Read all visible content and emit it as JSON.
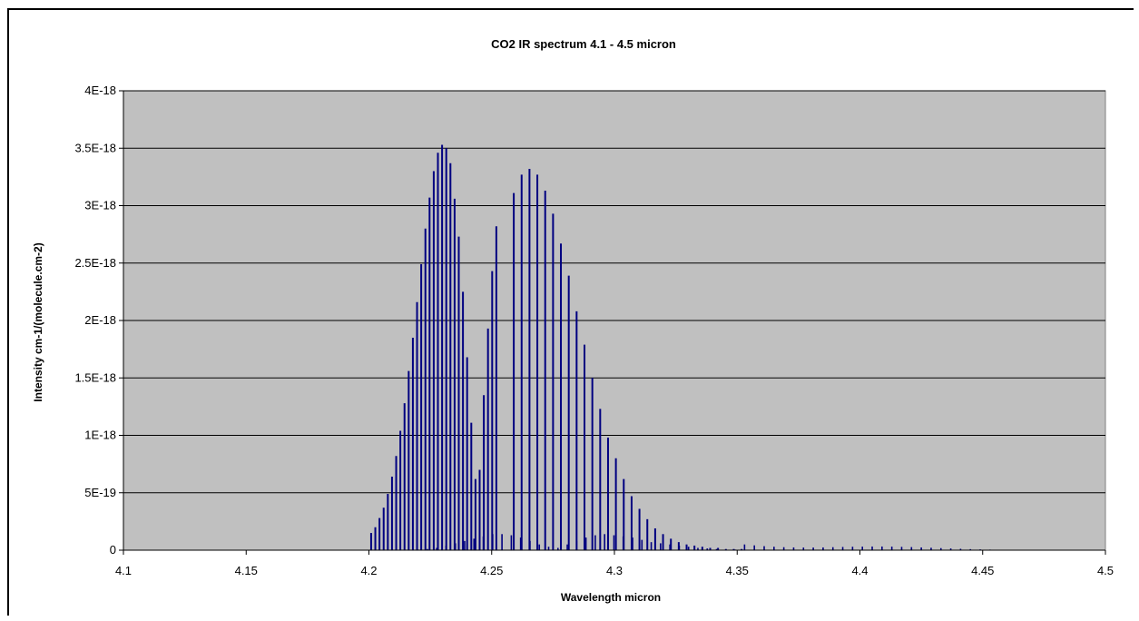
{
  "chart_data": {
    "type": "bar",
    "title": "CO2 IR spectrum 4.1 - 4.5 micron",
    "xlabel": "Wavelength micron",
    "ylabel": "Intensity cm-1/(molecule.cm-2)",
    "xlim": [
      4.1,
      4.5
    ],
    "ylim": [
      0,
      4e-18
    ],
    "x_ticks": [
      4.1,
      4.15,
      4.2,
      4.25,
      4.3,
      4.35,
      4.4,
      4.45,
      4.5
    ],
    "x_tick_labels": [
      "4.1",
      "4.15",
      "4.2",
      "4.25",
      "4.3",
      "4.35",
      "4.4",
      "4.45",
      "4.5"
    ],
    "y_ticks": [
      0,
      5e-19,
      1e-18,
      1.5e-18,
      2e-18,
      2.5e-18,
      3e-18,
      3.5e-18,
      4e-18
    ],
    "y_tick_labels": [
      "0",
      "5E-19",
      "1E-18",
      "1.5E-18",
      "2E-18",
      "2.5E-18",
      "3E-18",
      "3.5E-18",
      "4E-18"
    ],
    "grid": "horizontal",
    "plot_background": "#c0c0c0",
    "line_color": "#000080",
    "series": [
      {
        "x": [
          4.2009,
          4.2026,
          4.2043,
          4.206,
          4.2077,
          4.2094,
          4.2111,
          4.2128,
          4.2145,
          4.2162,
          4.2179,
          4.2196,
          4.2213,
          4.223,
          4.2247,
          4.2264,
          4.2281,
          4.2298,
          4.2315,
          4.2332,
          4.2349,
          4.2366,
          4.2383,
          4.24,
          4.2417,
          4.2434,
          4.2451,
          4.2468,
          4.2485,
          4.2502,
          4.2519,
          4.259,
          4.2622,
          4.2654,
          4.2686,
          4.2718,
          4.275,
          4.2782,
          4.2814,
          4.2846,
          4.2878,
          4.291,
          4.2942,
          4.2974,
          4.3006,
          4.3038,
          4.307,
          4.3102,
          4.3134,
          4.3166,
          4.3198,
          4.323,
          4.3262,
          4.3294,
          4.3326,
          4.3358,
          4.339,
          4.3422,
          4.3454,
          4.3486,
          4.3518
        ],
        "values": [
          1.5e-19,
          2e-19,
          2.8e-19,
          3.7e-19,
          4.9e-19,
          6.4e-19,
          8.2e-19,
          1.04e-18,
          1.28e-18,
          1.56e-18,
          1.85e-18,
          2.16e-18,
          2.49e-18,
          2.8e-18,
          3.07e-18,
          3.3e-18,
          3.46e-18,
          3.53e-18,
          3.5e-18,
          3.37e-18,
          3.06e-18,
          2.73e-18,
          2.25e-18,
          1.68e-18,
          1.11e-18,
          6.2e-19,
          7e-19,
          1.35e-18,
          1.93e-18,
          2.43e-18,
          2.82e-18,
          3.11e-18,
          3.27e-18,
          3.32e-18,
          3.27e-18,
          3.13e-18,
          2.93e-18,
          2.67e-18,
          2.39e-18,
          2.08e-18,
          1.79e-18,
          1.5e-18,
          1.23e-18,
          9.8e-19,
          8e-19,
          6.2e-19,
          4.7e-19,
          3.6e-19,
          2.7e-19,
          1.9e-19,
          1.4e-19,
          1e-19,
          7e-20,
          5e-20,
          4e-20,
          3e-20,
          2e-20,
          2e-20,
          1e-20,
          1e-20,
          1e-20
        ]
      },
      {
        "x": [
          4.22,
          4.2238,
          4.2276,
          4.2314,
          4.2352,
          4.239,
          4.2428,
          4.2466,
          4.2504,
          4.2542,
          4.258,
          4.2618,
          4.2656,
          4.2694,
          4.2732,
          4.277,
          4.2808,
          4.2846,
          4.2884,
          4.2922,
          4.296,
          4.2998,
          4.3036,
          4.3074,
          4.3112,
          4.315,
          4.3188,
          4.3226,
          4.3264,
          4.3302,
          4.334,
          4.3378,
          4.3416,
          4.3454,
          4.3492
        ],
        "values": [
          5e-21,
          1e-20,
          2e-20,
          4e-20,
          6e-20,
          8e-20,
          1e-19,
          1.2e-19,
          1.4e-19,
          1.4e-19,
          1.3e-19,
          1.1e-19,
          8e-20,
          5e-20,
          3e-20,
          2e-20,
          5e-20,
          8e-20,
          1.1e-19,
          1.3e-19,
          1.4e-19,
          1.3e-19,
          1.2e-19,
          1.1e-19,
          9e-20,
          7e-20,
          6e-20,
          5e-20,
          4e-20,
          3e-20,
          2e-20,
          1.5e-20,
          1e-20,
          8e-21,
          5e-21
        ]
      },
      {
        "x": [
          4.353,
          4.357,
          4.361,
          4.365,
          4.369,
          4.373,
          4.377,
          4.381,
          4.385,
          4.389,
          4.393,
          4.397,
          4.401,
          4.405,
          4.409,
          4.413,
          4.417,
          4.421,
          4.425,
          4.429,
          4.433,
          4.437,
          4.441,
          4.445,
          4.449,
          4.453,
          4.457,
          4.461
        ],
        "values": [
          5e-20,
          4.2e-20,
          3.5e-20,
          3e-20,
          2.6e-20,
          2.4e-20,
          2.3e-20,
          2.3e-20,
          2.4e-20,
          2.6e-20,
          2.8e-20,
          3e-20,
          3.1e-20,
          3.2e-20,
          3.2e-20,
          3.1e-20,
          2.9e-20,
          2.7e-20,
          2.4e-20,
          2.1e-20,
          1.8e-20,
          1.5e-20,
          1.2e-20,
          9e-21,
          7e-21,
          5e-21,
          4e-21,
          3e-21
        ]
      }
    ]
  }
}
